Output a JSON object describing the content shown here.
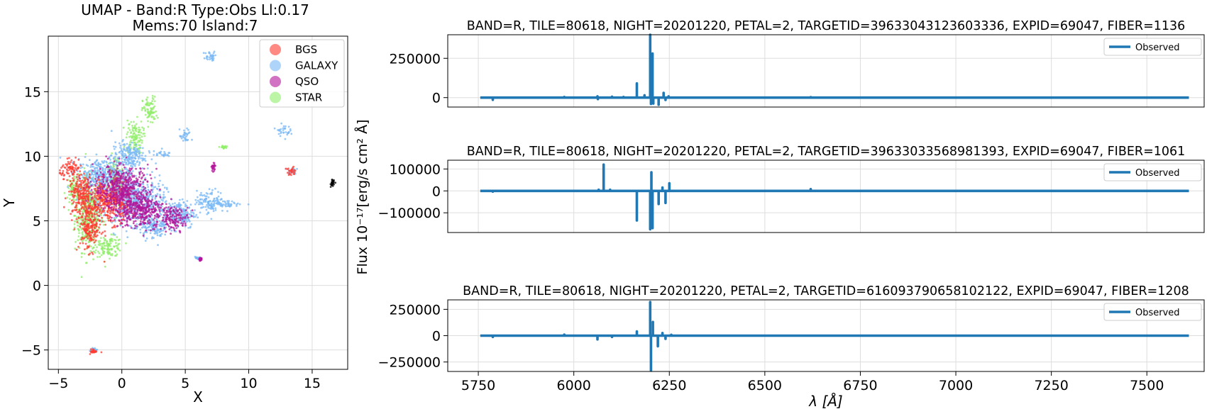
{
  "chart_data": [
    {
      "type": "scatter",
      "title": "UMAP  -  Band:R Type:Obs Ll:0.17",
      "subtitle": "Mems:70 Island:7",
      "xlabel": "X",
      "ylabel": "Y",
      "xlim": [
        -5.8,
        17.8
      ],
      "ylim": [
        -6.5,
        19.3
      ],
      "xticks": [
        -5,
        0,
        5,
        10,
        15
      ],
      "yticks": [
        -5,
        0,
        5,
        10,
        15
      ],
      "grid": true,
      "legend_position": "top-right",
      "series": [
        {
          "name": "BGS",
          "color": "#ff3b30",
          "clusters": [
            [
              -4.0,
              9.0,
              0.8,
              0.6
            ],
            [
              -3.2,
              7.0,
              0.9,
              1.5
            ],
            [
              -2.5,
              4.5,
              0.8,
              1.6
            ],
            [
              13.3,
              8.8,
              0.4,
              0.3
            ],
            [
              -2.2,
              -5.1,
              0.25,
              0.15
            ],
            [
              -1.0,
              6.5,
              1.5,
              1.5
            ]
          ]
        },
        {
          "name": "GALAXY",
          "color": "#7ab8f5",
          "clusters": [
            [
              1.0,
              6.5,
              2.2,
              1.6
            ],
            [
              4.5,
              5.5,
              1.2,
              1.0
            ],
            [
              -1.5,
              8.5,
              1.8,
              1.2
            ],
            [
              0.5,
              10.0,
              1.2,
              1.0
            ],
            [
              3.0,
              10.2,
              0.8,
              0.2
            ],
            [
              5.0,
              11.5,
              0.4,
              0.5
            ],
            [
              7.0,
              6.5,
              1.0,
              0.8
            ],
            [
              8.7,
              6.3,
              0.9,
              0.2
            ],
            [
              7.0,
              17.7,
              0.5,
              0.4
            ],
            [
              12.7,
              12.0,
              0.5,
              0.4
            ],
            [
              13.4,
              8.9,
              0.3,
              0.25
            ],
            [
              2.5,
              4.5,
              1.0,
              0.8
            ],
            [
              6.0,
              2.1,
              0.2,
              0.1
            ],
            [
              -2.2,
              -5.0,
              0.2,
              0.15
            ]
          ]
        },
        {
          "name": "QSO",
          "color": "#b3169a",
          "clusters": [
            [
              4.2,
              5.2,
              1.0,
              0.8
            ],
            [
              1.5,
              5.8,
              1.8,
              1.2
            ],
            [
              0.0,
              7.5,
              2.0,
              1.6
            ],
            [
              7.2,
              9.2,
              0.15,
              0.3
            ],
            [
              6.2,
              2.0,
              0.1,
              0.1
            ]
          ]
        },
        {
          "name": "STAR",
          "color": "#90ee6a",
          "clusters": [
            [
              -2.6,
              5.5,
              1.0,
              2.6
            ],
            [
              -1.0,
              3.0,
              1.0,
              0.7
            ],
            [
              -0.5,
              8.0,
              0.6,
              1.8
            ],
            [
              1.0,
              11.5,
              0.6,
              1.2
            ],
            [
              2.2,
              13.5,
              0.5,
              1.0
            ],
            [
              -3.8,
              7.5,
              0.4,
              1.0
            ],
            [
              8.0,
              10.7,
              0.2,
              0.1
            ]
          ]
        },
        {
          "name": "",
          "color": "#000000",
          "clusters": [
            [
              16.6,
              7.9,
              0.12,
              0.25
            ]
          ]
        }
      ]
    },
    {
      "type": "line",
      "title": "BAND=R, TILE=80618, NIGHT=20201220, PETAL=2, TARGETID=39633043123603336, EXPID=69047, FIBER=1136",
      "legend": "Observed",
      "ylim": [
        -60000,
        400000
      ],
      "yticks": [
        0,
        250000
      ],
      "ytick_labels": [
        "0",
        "250000"
      ],
      "xlim": [
        5670,
        7650
      ],
      "grid": true,
      "series": [
        {
          "name": "Observed",
          "color": "#1f77b4",
          "spikes": [
            [
              5788,
              -14000
            ],
            [
              5975,
              4000
            ],
            [
              6062,
              8000
            ],
            [
              6063,
              -9000
            ],
            [
              6100,
              6000
            ],
            [
              6130,
              4000
            ],
            [
              6165,
              90000
            ],
            [
              6185,
              15000
            ],
            [
              6200,
              400000
            ],
            [
              6202,
              -40000
            ],
            [
              6206,
              280000
            ],
            [
              6208,
              -38000
            ],
            [
              6222,
              -45000
            ],
            [
              6235,
              30000
            ],
            [
              6240,
              -15000
            ],
            [
              6248,
              8000
            ],
            [
              6620,
              3000
            ]
          ]
        }
      ]
    },
    {
      "type": "line",
      "title": "BAND=R, TILE=80618, NIGHT=20201220, PETAL=2, TARGETID=39633033568981393, EXPID=69047, FIBER=1061",
      "legend": "Observed",
      "ylim": [
        -190000,
        140000
      ],
      "yticks": [
        -100000,
        0,
        100000
      ],
      "ytick_labels": [
        "-100000",
        "0",
        "100000"
      ],
      "xlim": [
        5670,
        7650
      ],
      "grid": true,
      "series": [
        {
          "name": "Observed",
          "color": "#1f77b4",
          "spikes": [
            [
              5788,
              -3000
            ],
            [
              6065,
              5000
            ],
            [
              6078,
              120000
            ],
            [
              6095,
              5000
            ],
            [
              6165,
              -135000
            ],
            [
              6200,
              -175000
            ],
            [
              6203,
              85000
            ],
            [
              6206,
              -170000
            ],
            [
              6222,
              -60000
            ],
            [
              6232,
              15000
            ],
            [
              6240,
              -55000
            ],
            [
              6250,
              35000
            ],
            [
              6620,
              8000
            ]
          ]
        }
      ]
    },
    {
      "type": "line",
      "title": "BAND=R, TILE=80618, NIGHT=20201220, PETAL=2, TARGETID=616093790658102122, EXPID=69047, FIBER=1208",
      "legend": "Observed",
      "xlabel": "λ [Å]",
      "ylim": [
        -340000,
        340000
      ],
      "yticks": [
        -250000,
        0,
        250000
      ],
      "ytick_labels": [
        "-250000",
        "0",
        "250000"
      ],
      "xlim": [
        5670,
        7650
      ],
      "xticks": [
        5750,
        6000,
        6250,
        6500,
        6750,
        7000,
        7250,
        7500
      ],
      "grid": true,
      "series": [
        {
          "name": "Observed",
          "color": "#1f77b4",
          "spikes": [
            [
              5788,
              -12000
            ],
            [
              5975,
              10000
            ],
            [
              6062,
              -35000
            ],
            [
              6100,
              -12000
            ],
            [
              6165,
              40000
            ],
            [
              6200,
              320000
            ],
            [
              6202,
              -330000
            ],
            [
              6207,
              130000
            ],
            [
              6220,
              -100000
            ],
            [
              6232,
              25000
            ],
            [
              6240,
              -30000
            ],
            [
              6255,
              8000
            ]
          ]
        }
      ]
    }
  ],
  "shared_ylabel": "Flux 10⁻¹⁷[erg/s cm² Å]"
}
